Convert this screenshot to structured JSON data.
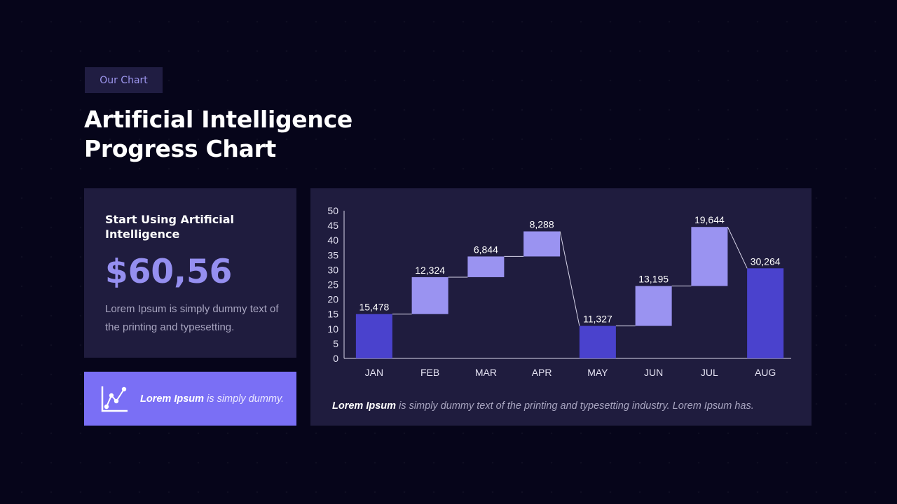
{
  "tag": "Our Chart",
  "title_line1": "Artificial Intelligence",
  "title_line2": "Progress Chart",
  "stat_card": {
    "subtitle": "Start Using Artificial Intelligence",
    "value": "$60,56",
    "description": "Lorem Ipsum is simply dummy text of the printing and typesetting."
  },
  "cta": {
    "icon": "line-chart-icon",
    "bold": "Lorem Ipsum",
    "rest": " is simply dummy."
  },
  "chart_caption": {
    "bold": "Lorem Ipsum",
    "rest": " is simply dummy text of the printing and typesetting industry.  Lorem Ipsum has."
  },
  "colors": {
    "background": "#06051a",
    "card": "#1f1c3e",
    "accent": "#7a6ff5",
    "total_bar": "#4a42cd",
    "step_bar": "#9a93f1"
  },
  "chart_data": {
    "type": "bar",
    "subtype": "waterfall",
    "categories": [
      "JAN",
      "FEB",
      "MAR",
      "APR",
      "MAY",
      "JUN",
      "JUL",
      "AUG"
    ],
    "labels": [
      "15,478",
      "12,324",
      "6,844",
      "8,288",
      "11,327",
      "13,195",
      "19,644",
      "30,264"
    ],
    "bars": [
      {
        "base": 0,
        "top": 15,
        "kind": "total"
      },
      {
        "base": 15,
        "top": 27.5,
        "kind": "step"
      },
      {
        "base": 27.5,
        "top": 34.5,
        "kind": "step"
      },
      {
        "base": 34.5,
        "top": 43,
        "kind": "step"
      },
      {
        "base": 0,
        "top": 11,
        "kind": "total"
      },
      {
        "base": 11,
        "top": 24.5,
        "kind": "step"
      },
      {
        "base": 24.5,
        "top": 44.5,
        "kind": "step"
      },
      {
        "base": 0,
        "top": 30.5,
        "kind": "total"
      }
    ],
    "yticks": [
      0,
      5,
      10,
      15,
      20,
      25,
      30,
      35,
      40,
      45,
      50
    ],
    "ylim": [
      0,
      50
    ],
    "grid": false,
    "legend": "none"
  }
}
